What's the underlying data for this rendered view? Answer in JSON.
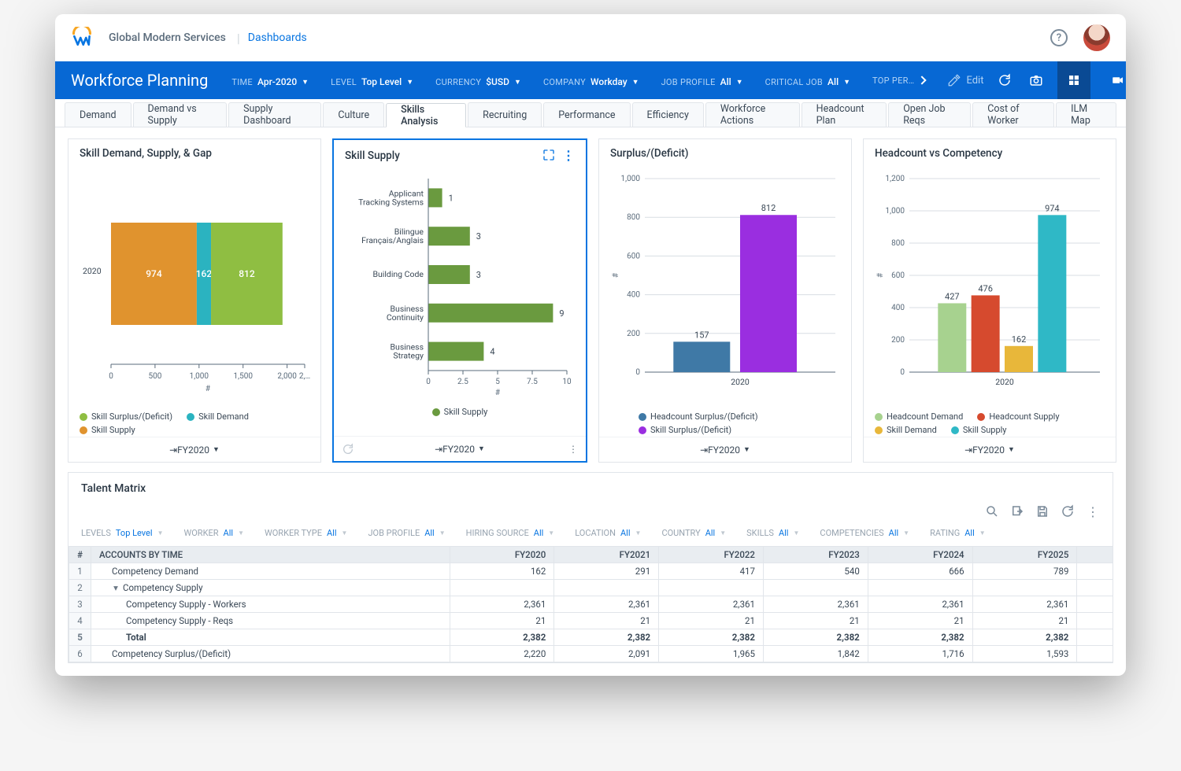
{
  "header": {
    "org": "Global Modern Services",
    "crumb": "Dashboards"
  },
  "page": {
    "title": "Workforce Planning",
    "edit_label": "Edit",
    "top_perf_label": "TOP PER…"
  },
  "filters": [
    {
      "label": "TIME",
      "value": "Apr-2020"
    },
    {
      "label": "LEVEL",
      "value": "Top Level"
    },
    {
      "label": "CURRENCY",
      "value": "$USD"
    },
    {
      "label": "COMPANY",
      "value": "Workday"
    },
    {
      "label": "JOB PROFILE",
      "value": "All"
    },
    {
      "label": "CRITICAL JOB",
      "value": "All"
    }
  ],
  "tabs": [
    "Demand",
    "Demand vs Supply",
    "Supply Dashboard",
    "Culture",
    "Skills Analysis",
    "Recruiting",
    "Performance",
    "Efficiency",
    "Workforce Actions",
    "Headcount Plan",
    "Open Job Reqs",
    "Cost of Worker",
    "ILM Map"
  ],
  "active_tab": "Skills Analysis",
  "card_footer": "FY2020",
  "charts": {
    "c1": {
      "title": "Skill Demand, Supply, & Gap",
      "type": "stacked-bar-horizontal",
      "category": "2020",
      "segments": [
        {
          "label": "Skill Supply",
          "value": 974,
          "color": "#e0932e"
        },
        {
          "label": "Skill Demand",
          "value": 162,
          "color": "#2bb3c0"
        },
        {
          "label": "Skill Surplus/(Deficit)",
          "value": 812,
          "color": "#8fbe42"
        }
      ],
      "x_ticks": [
        "0",
        "500",
        "1,000",
        "1,500",
        "2,000",
        "2,…"
      ],
      "x_axis_label": "#",
      "legend": [
        {
          "label": "Skill Surplus/(Deficit)",
          "color": "#8fbe42"
        },
        {
          "label": "Skill Demand",
          "color": "#2bb3c0"
        },
        {
          "label": "Skill Supply",
          "color": "#e0932e"
        }
      ]
    },
    "c2": {
      "title": "Skill Supply",
      "type": "bar-horizontal",
      "color": "#6a9a3f",
      "x_axis_label": "#",
      "x_ticks": [
        "0",
        "2.5",
        "5",
        "7.5",
        "10"
      ],
      "x_max": 10,
      "items": [
        {
          "label": "Applicant Tracking Systems",
          "value": 1
        },
        {
          "label": "Bilingue Français/Anglais",
          "value": 3
        },
        {
          "label": "Building Code",
          "value": 3
        },
        {
          "label": "Business Continuity",
          "value": 9
        },
        {
          "label": "Business Strategy",
          "value": 4
        }
      ],
      "legend": [
        {
          "label": "Skill Supply",
          "color": "#6a9a3f"
        }
      ]
    },
    "c3": {
      "title": "Surplus/(Deficit)",
      "type": "bar-vertical",
      "y_ticks": [
        "0",
        "200",
        "400",
        "600",
        "800",
        "1,000"
      ],
      "y_max": 1000,
      "y_axis_label": "#",
      "category": "2020",
      "bars": [
        {
          "label": "Headcount Surplus/(Deficit)",
          "value": 157,
          "color": "#3f79a6"
        },
        {
          "label": "Skill Surplus/(Deficit)",
          "value": 812,
          "color": "#9a2ee0"
        }
      ]
    },
    "c4": {
      "title": "Headcount vs Competency",
      "type": "bar-vertical",
      "y_ticks": [
        "0",
        "200",
        "400",
        "600",
        "800",
        "1,000",
        "1,200"
      ],
      "y_max": 1200,
      "y_axis_label": "#",
      "category": "2020",
      "bars": [
        {
          "label": "Headcount Demand",
          "value": 427,
          "color": "#a7d28f"
        },
        {
          "label": "Headcount Supply",
          "value": 476,
          "color": "#d64a2e"
        },
        {
          "label": "Skill Demand",
          "value": 162,
          "color": "#e8b73a"
        },
        {
          "label": "Skill Supply",
          "value": 974,
          "color": "#2fb8c6"
        }
      ]
    }
  },
  "talent": {
    "title": "Talent Matrix",
    "filters": [
      {
        "label": "LEVELS",
        "value": "Top Level"
      },
      {
        "label": "WORKER",
        "value": "All"
      },
      {
        "label": "WORKER TYPE",
        "value": "All"
      },
      {
        "label": "JOB PROFILE",
        "value": "All"
      },
      {
        "label": "HIRING SOURCE",
        "value": "All"
      },
      {
        "label": "LOCATION",
        "value": "All"
      },
      {
        "label": "COUNTRY",
        "value": "All"
      },
      {
        "label": "SKILLS",
        "value": "All"
      },
      {
        "label": "COMPETENCIES",
        "value": "All"
      },
      {
        "label": "RATING",
        "value": "All"
      }
    ],
    "columns": [
      "#",
      "ACCOUNTS BY TIME",
      "FY2020",
      "FY2021",
      "FY2022",
      "FY2023",
      "FY2024",
      "FY2025"
    ],
    "rows": [
      {
        "n": 1,
        "label": "Competency Demand",
        "indent": 1,
        "vals": [
          "162",
          "291",
          "417",
          "540",
          "666",
          "789"
        ]
      },
      {
        "n": 2,
        "label": "Competency Supply",
        "indent": 1,
        "expand": true,
        "vals": [
          "",
          "",
          "",
          "",
          "",
          ""
        ]
      },
      {
        "n": 3,
        "label": "Competency Supply - Workers",
        "indent": 2,
        "vals": [
          "2,361",
          "2,361",
          "2,361",
          "2,361",
          "2,361",
          "2,361"
        ]
      },
      {
        "n": 4,
        "label": "Competency Supply - Reqs",
        "indent": 2,
        "vals": [
          "21",
          "21",
          "21",
          "21",
          "21",
          "21"
        ]
      },
      {
        "n": 5,
        "label": "Total",
        "indent": 2,
        "bold": true,
        "vals": [
          "2,382",
          "2,382",
          "2,382",
          "2,382",
          "2,382",
          "2,382"
        ]
      },
      {
        "n": 6,
        "label": "Competency Surplus/(Deficit)",
        "indent": 1,
        "vals": [
          "2,220",
          "2,091",
          "1,965",
          "1,842",
          "1,716",
          "1,593"
        ]
      }
    ]
  }
}
